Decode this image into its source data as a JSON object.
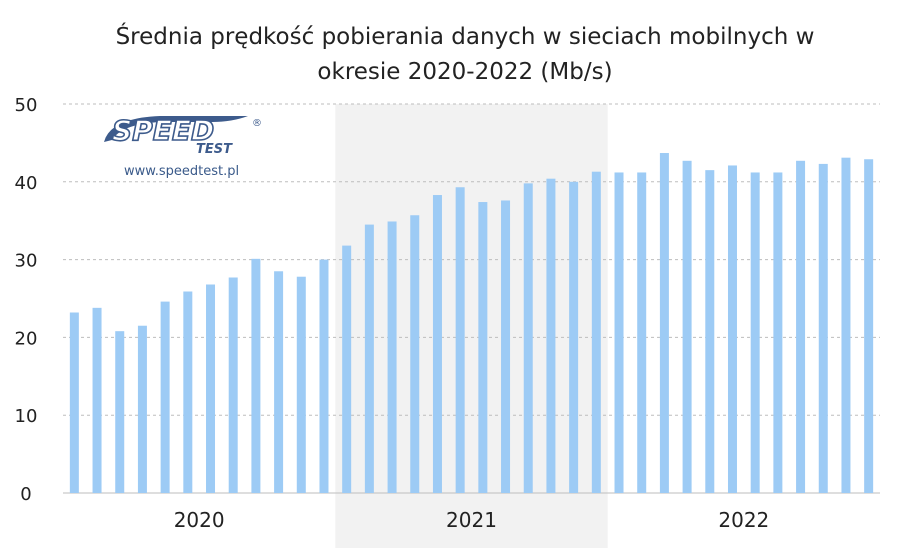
{
  "chart_data": {
    "type": "bar",
    "title_lines": [
      "Średnia prędkość pobierania danych w sieciach mobilnych w",
      "okresie 2020-2022 (Mb/s)"
    ],
    "ylim": [
      0,
      50
    ],
    "yticks": [
      "0",
      "10",
      "20",
      "30",
      "40",
      "50"
    ],
    "grid": true,
    "year_groups": [
      {
        "label": "2020",
        "start": 0,
        "end": 11,
        "shaded": false
      },
      {
        "label": "2021",
        "start": 12,
        "end": 23,
        "shaded": true
      },
      {
        "label": "2022",
        "start": 24,
        "end": 35,
        "shaded": false
      }
    ],
    "values": [
      23.2,
      23.8,
      20.8,
      21.5,
      24.6,
      25.9,
      26.8,
      27.7,
      30.1,
      28.5,
      27.8,
      30.0,
      31.8,
      34.5,
      34.9,
      35.7,
      38.3,
      39.3,
      37.4,
      37.6,
      39.8,
      40.4,
      40.0,
      41.3,
      41.2,
      41.2,
      43.7,
      42.7,
      41.5,
      42.1,
      41.2,
      41.2,
      42.7,
      42.3,
      43.1,
      42.9
    ],
    "colors": {
      "bar": "#9dcbf5",
      "shade": "#f2f2f2",
      "logo": "#3d5b8c"
    }
  },
  "logo": {
    "brand": "SPEED",
    "sub": "TEST",
    "mark": "®",
    "url": "www.speedtest.pl"
  }
}
